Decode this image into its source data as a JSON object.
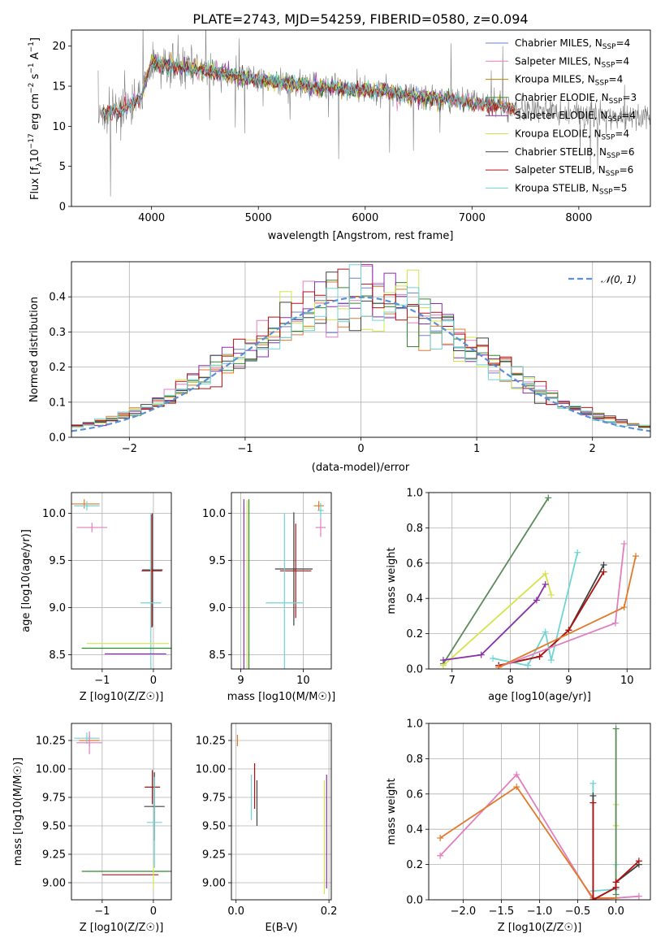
{
  "chart_data": [
    {
      "type": "line",
      "title": "PLATE=2743, MJD=54259, FIBERID=0580, z=0.094",
      "xlabel": "wavelength [Angstrom, rest frame]",
      "ylabel_parts": [
        "Flux [f",
        "λ",
        "10",
        "−17",
        " erg cm",
        "−2",
        " s",
        "−1",
        " A",
        "−1",
        "]"
      ],
      "xlim": [
        3250,
        8670
      ],
      "ylim": [
        0,
        22
      ],
      "xticks": [
        4000,
        5000,
        6000,
        7000,
        8000
      ],
      "yticks": [
        0,
        5,
        10,
        15,
        20
      ],
      "grid": false,
      "legend_position": "top-right",
      "data_series_color": "#808080",
      "models": [
        {
          "label": "Chabrier MILES, N",
          "sub": "SSP",
          "n": "=4",
          "color": "#6a80c8",
          "x_range": [
            3540,
            7410
          ]
        },
        {
          "label": "Salpeter MILES, N",
          "sub": "SSP",
          "n": "=4",
          "color": "#e07fc0",
          "x_range": [
            3540,
            7410
          ]
        },
        {
          "label": "Kroupa MILES, N",
          "sub": "SSP",
          "n": "=4",
          "color": "#b8860b",
          "x_range": [
            3540,
            7410
          ]
        },
        {
          "label": "Chabrier ELODIE, N",
          "sub": "SSP",
          "n": "=3",
          "color": "#2f8b2f",
          "x_range": [
            3900,
            6800
          ]
        },
        {
          "label": "Salpeter ELODIE, N",
          "sub": "SSP",
          "n": "=4",
          "color": "#8b2fa8",
          "x_range": [
            3900,
            6800
          ]
        },
        {
          "label": "Kroupa ELODIE, N",
          "sub": "SSP",
          "n": "=4",
          "color": "#d4e44a",
          "x_range": [
            3900,
            6800
          ]
        },
        {
          "label": "Chabrier STELIB, N",
          "sub": "SSP",
          "n": "=6",
          "color": "#404040",
          "x_range": [
            3540,
            7410
          ]
        },
        {
          "label": "Salpeter STELIB, N",
          "sub": "SSP",
          "n": "=6",
          "color": "#b01010",
          "x_range": [
            3540,
            7410
          ]
        },
        {
          "label": "Kroupa STELIB, N",
          "sub": "SSP",
          "n": "=5",
          "color": "#6fd4d4",
          "x_range": [
            3540,
            7410
          ]
        }
      ],
      "continuum": [
        [
          3500,
          11.5
        ],
        [
          3700,
          12.0
        ],
        [
          3900,
          13.5
        ],
        [
          4000,
          18
        ],
        [
          4200,
          17.5
        ],
        [
          4500,
          17
        ],
        [
          5000,
          15.8
        ],
        [
          5500,
          15
        ],
        [
          6000,
          14.5
        ],
        [
          6500,
          13.8
        ],
        [
          7000,
          13
        ],
        [
          7400,
          12.3
        ],
        [
          8000,
          11.6
        ],
        [
          8670,
          11.0
        ]
      ]
    },
    {
      "type": "line",
      "xlabel": "(data-model)/error",
      "ylabel": "Normed distribution",
      "xlim": [
        -2.5,
        2.5
      ],
      "ylim": [
        0,
        0.5
      ],
      "xticks": [
        -2,
        -1,
        0,
        1,
        2
      ],
      "yticks": [
        0.0,
        0.1,
        0.2,
        0.3,
        0.4
      ],
      "grid": true,
      "legend_position": "top-right",
      "reference_curve": {
        "label": "𝒩(0, 1)",
        "color": "#5b8fd6",
        "style": "dashed"
      },
      "histogram_bin_width": 0.1,
      "histogram_colors": [
        "#6a80c8",
        "#e07fc0",
        "#e07a2a",
        "#2f8b2f",
        "#8b2fa8",
        "#d4e44a",
        "#404040",
        "#b01010",
        "#6fd4d4"
      ]
    },
    {
      "type": "scatter",
      "xlabel": "Z [log10(Z/Z☉)]",
      "ylabel": "age  [log10(age/yr)]",
      "xlim": [
        -1.6,
        0.35
      ],
      "ylim": [
        8.35,
        10.22
      ],
      "xticks": [
        -1,
        0
      ],
      "yticks": [
        8.5,
        9.0,
        9.5,
        10.0
      ],
      "points": [
        {
          "x": -1.35,
          "y": 10.1,
          "xerr": 0.3,
          "yerr": 0.05,
          "color": "#e07a2a"
        },
        {
          "x": -1.3,
          "y": 10.08,
          "xerr": 0.25,
          "yerr": 0.05,
          "color": "#6fd4d4"
        },
        {
          "x": -1.2,
          "y": 9.85,
          "xerr": 0.3,
          "yerr": 0.05,
          "color": "#e07fc0"
        },
        {
          "x": -0.02,
          "y": 9.4,
          "xerr": 0.2,
          "yerr": 0.6,
          "color": "#404040"
        },
        {
          "x": -0.03,
          "y": 9.39,
          "xerr": 0.2,
          "yerr": 0.6,
          "color": "#b01010"
        },
        {
          "x": -0.05,
          "y": 9.05,
          "xerr": 0.2,
          "yerr": 0.95,
          "color": "#6fd4d4"
        },
        {
          "x": -0.5,
          "y": 8.62,
          "xerr": 0.8,
          "yerr": 0.0,
          "color": "#d4e44a"
        },
        {
          "x": -0.5,
          "y": 8.57,
          "xerr": 0.9,
          "yerr": 0.0,
          "color": "#2f8b2f"
        },
        {
          "x": -0.35,
          "y": 8.51,
          "xerr": 0.6,
          "yerr": 0.0,
          "color": "#8b2fa8"
        }
      ]
    },
    {
      "type": "scatter",
      "xlabel": "mass [log10(M/M☉)]",
      "ylabel": "",
      "xlim": [
        8.85,
        10.45
      ],
      "ylim": [
        8.35,
        10.22
      ],
      "xticks": [
        9,
        10
      ],
      "yticks": [
        8.5,
        9.0,
        9.5,
        10.0
      ],
      "points": [
        {
          "x": 10.25,
          "y": 10.08,
          "xerr": 0.08,
          "yerr": 0.05,
          "color": "#e07a2a"
        },
        {
          "x": 10.28,
          "y": 10.03,
          "xerr": 0.05,
          "yerr": 0.08,
          "color": "#6fd4d4"
        },
        {
          "x": 10.28,
          "y": 9.85,
          "xerr": 0.08,
          "yerr": 0.1,
          "color": "#e07fc0"
        },
        {
          "x": 9.85,
          "y": 9.41,
          "xerr": 0.3,
          "yerr": 0.6,
          "color": "#404040"
        },
        {
          "x": 9.88,
          "y": 9.39,
          "xerr": 0.25,
          "yerr": 0.5,
          "color": "#b01010"
        },
        {
          "x": 9.7,
          "y": 9.05,
          "xerr": 0.3,
          "yerr": 0.95,
          "color": "#6fd4d4"
        },
        {
          "x": 9.1,
          "y": 8.62,
          "xerr": 0.0,
          "yerr": 1.52,
          "color": "#d4e44a"
        },
        {
          "x": 9.13,
          "y": 8.57,
          "xerr": 0.0,
          "yerr": 1.58,
          "color": "#2f8b2f"
        },
        {
          "x": 9.05,
          "y": 8.51,
          "xerr": 0.0,
          "yerr": 1.64,
          "color": "#8b2fa8"
        }
      ]
    },
    {
      "type": "line",
      "xlabel": "age  [log10(age/yr)]",
      "ylabel": "mass weight",
      "xlim": [
        6.6,
        10.4
      ],
      "ylim": [
        0,
        1
      ],
      "xticks": [
        7,
        8,
        9,
        10
      ],
      "yticks": [
        0.0,
        0.2,
        0.4,
        0.6,
        0.8,
        1.0
      ],
      "grid": true,
      "series": [
        {
          "color": "#5a8a5a",
          "points": [
            [
              6.85,
              0.03
            ],
            [
              8.65,
              0.97
            ]
          ]
        },
        {
          "color": "#d4e44a",
          "points": [
            [
              6.85,
              0.02
            ],
            [
              8.6,
              0.54
            ],
            [
              8.7,
              0.42
            ]
          ]
        },
        {
          "color": "#8b2fa8",
          "points": [
            [
              6.85,
              0.05
            ],
            [
              7.5,
              0.08
            ],
            [
              8.45,
              0.39
            ],
            [
              8.6,
              0.48
            ]
          ]
        },
        {
          "color": "#6fd4d4",
          "points": [
            [
              7.7,
              0.06
            ],
            [
              8.3,
              0.02
            ],
            [
              8.6,
              0.21
            ],
            [
              8.7,
              0.05
            ],
            [
              9.15,
              0.66
            ]
          ]
        },
        {
          "color": "#404040",
          "points": [
            [
              7.8,
              0.02
            ],
            [
              8.5,
              0.07
            ],
            [
              9.0,
              0.22
            ],
            [
              9.6,
              0.59
            ]
          ]
        },
        {
          "color": "#b01010",
          "points": [
            [
              7.8,
              0.02
            ],
            [
              8.5,
              0.07
            ],
            [
              9.0,
              0.22
            ],
            [
              9.6,
              0.55
            ]
          ]
        },
        {
          "color": "#e07fc0",
          "points": [
            [
              7.8,
              0.01
            ],
            [
              9.8,
              0.26
            ],
            [
              9.95,
              0.71
            ]
          ]
        },
        {
          "color": "#e07a2a",
          "points": [
            [
              7.8,
              0.01
            ],
            [
              9.95,
              0.35
            ],
            [
              10.15,
              0.64
            ]
          ]
        }
      ]
    },
    {
      "type": "scatter",
      "xlabel": "Z [log10(Z/Z☉)]",
      "ylabel": "mass [log10(M/M☉)]",
      "xlim": [
        -1.6,
        0.35
      ],
      "ylim": [
        8.85,
        10.4
      ],
      "xticks": [
        -1,
        0
      ],
      "yticks": [
        9.0,
        9.25,
        9.5,
        9.75,
        10.0,
        10.25
      ],
      "points": [
        {
          "x": -1.25,
          "y": 10.25,
          "xerr": 0.2,
          "yerr": 0.05,
          "color": "#e07a2a"
        },
        {
          "x": -1.3,
          "y": 10.27,
          "xerr": 0.25,
          "yerr": 0.05,
          "color": "#6fd4d4"
        },
        {
          "x": -1.25,
          "y": 10.23,
          "xerr": 0.25,
          "yerr": 0.1,
          "color": "#e07fc0"
        },
        {
          "x": -0.02,
          "y": 9.84,
          "xerr": 0.15,
          "yerr": 0.15,
          "color": "#b01010"
        },
        {
          "x": 0.02,
          "y": 9.67,
          "xerr": 0.2,
          "yerr": 0.3,
          "color": "#404040"
        },
        {
          "x": 0.02,
          "y": 9.53,
          "xerr": 0.15,
          "yerr": 0.4,
          "color": "#6fd4d4"
        },
        {
          "x": -0.5,
          "y": 9.1,
          "xerr": 0.9,
          "yerr": 0.0,
          "color": "#2f8b2f"
        },
        {
          "x": -0.45,
          "y": 9.07,
          "xerr": 0.55,
          "yerr": 0.0,
          "color": "#b01010"
        },
        {
          "x": 0.0,
          "y": 9.05,
          "xerr": 0.0,
          "yerr": 0.1,
          "color": "#d4e44a"
        }
      ]
    },
    {
      "type": "scatter",
      "xlabel": "E(B-V)",
      "ylabel": "",
      "xlim": [
        -0.01,
        0.205
      ],
      "ylim": [
        8.85,
        10.4
      ],
      "xticks": [
        0.0,
        0.2
      ],
      "yticks": [
        9.0,
        9.25,
        9.5,
        9.75,
        10.0,
        10.25
      ],
      "points": [
        {
          "x": 0.003,
          "y": 10.25,
          "xerr": 0.0,
          "yerr": 0.05,
          "color": "#e07a2a"
        },
        {
          "x": 0.033,
          "y": 9.75,
          "xerr": 0.0,
          "yerr": 0.2,
          "color": "#6fd4d4"
        },
        {
          "x": 0.04,
          "y": 9.85,
          "xerr": 0.0,
          "yerr": 0.2,
          "color": "#b01010"
        },
        {
          "x": 0.045,
          "y": 9.7,
          "xerr": 0.0,
          "yerr": 0.2,
          "color": "#404040"
        },
        {
          "x": 0.19,
          "y": 9.4,
          "xerr": 0.0,
          "yerr": 0.5,
          "color": "#d4e44a"
        },
        {
          "x": 0.195,
          "y": 9.45,
          "xerr": 0.0,
          "yerr": 0.5,
          "color": "#8b2fa8"
        }
      ]
    },
    {
      "type": "line",
      "xlabel": "Z [log10(Z/Z☉)]",
      "ylabel": "mass weight",
      "xlim": [
        -2.45,
        0.45
      ],
      "ylim": [
        0,
        1
      ],
      "xticks": [
        -2.0,
        -1.5,
        -1.0,
        -0.5,
        0.0
      ],
      "yticks": [
        0.0,
        0.2,
        0.4,
        0.6,
        0.8,
        1.0
      ],
      "grid": true,
      "series": [
        {
          "color": "#e07fc0",
          "points": [
            [
              -2.3,
              0.25
            ],
            [
              -1.3,
              0.71
            ],
            [
              -0.3,
              0.0
            ],
            [
              0.0,
              0.01
            ],
            [
              0.3,
              0.02
            ]
          ]
        },
        {
          "color": "#e07a2a",
          "points": [
            [
              -2.3,
              0.35
            ],
            [
              -1.3,
              0.64
            ],
            [
              -0.3,
              0.01
            ],
            [
              0.0,
              0.01
            ]
          ]
        },
        {
          "color": "#6fd4d4",
          "points": [
            [
              -0.3,
              0.66
            ],
            [
              -0.3,
              0.05
            ],
            [
              0.0,
              0.06
            ],
            [
              0.0,
              0.2
            ]
          ]
        },
        {
          "color": "#d4e44a",
          "points": [
            [
              0.0,
              0.54
            ],
            [
              0.0,
              0.42
            ]
          ]
        },
        {
          "color": "#5a8a5a",
          "points": [
            [
              0.0,
              0.97
            ],
            [
              0.0,
              0.03
            ]
          ]
        },
        {
          "color": "#404040",
          "points": [
            [
              -0.3,
              0.59
            ],
            [
              -0.3,
              0.0
            ],
            [
              0.0,
              0.07
            ],
            [
              0.0,
              0.1
            ],
            [
              0.3,
              0.2
            ]
          ]
        },
        {
          "color": "#b01010",
          "points": [
            [
              -0.3,
              0.55
            ],
            [
              -0.3,
              0.0
            ],
            [
              0.0,
              0.07
            ],
            [
              0.0,
              0.1
            ],
            [
              0.3,
              0.22
            ]
          ]
        }
      ]
    }
  ]
}
